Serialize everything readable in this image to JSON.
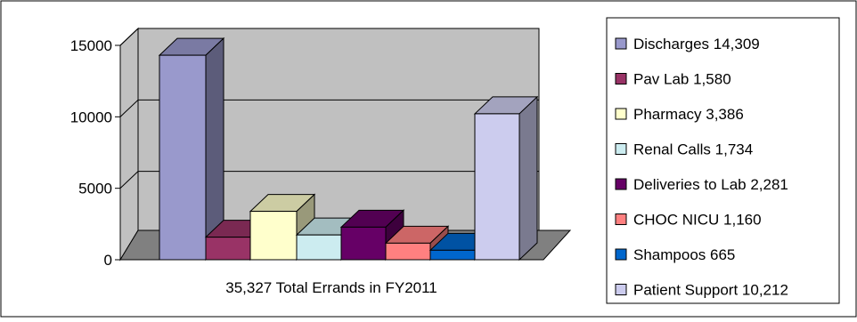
{
  "chart_data": {
    "type": "bar",
    "title": "",
    "xlabel": "",
    "ylabel": "",
    "category_label": "35,327 Total Errands in FY2011",
    "ylim": [
      0,
      15000
    ],
    "yticks": [
      "0",
      "5000",
      "10000",
      "15000"
    ],
    "ytick_values": [
      0,
      5000,
      10000,
      15000
    ],
    "grid": true,
    "legend_position": "right",
    "series": [
      {
        "name": "Discharges 14,309",
        "value": 14309,
        "color": "#9999CC"
      },
      {
        "name": "Pav Lab 1,580",
        "value": 1580,
        "color": "#993366"
      },
      {
        "name": "Pharmacy  3,386",
        "value": 3386,
        "color": "#FFFFCC"
      },
      {
        "name": "Renal Calls 1,734",
        "value": 1734,
        "color": "#CCECF0"
      },
      {
        "name": "Deliveries to Lab  2,281",
        "value": 2281,
        "color": "#660066"
      },
      {
        "name": "CHOC  NICU  1,160",
        "value": 1160,
        "color": "#FF8080"
      },
      {
        "name": "Shampoos  665",
        "value": 665,
        "color": "#0066CC"
      },
      {
        "name": "Patient Support  10,212",
        "value": 10212,
        "color": "#CCCCEE"
      }
    ]
  }
}
